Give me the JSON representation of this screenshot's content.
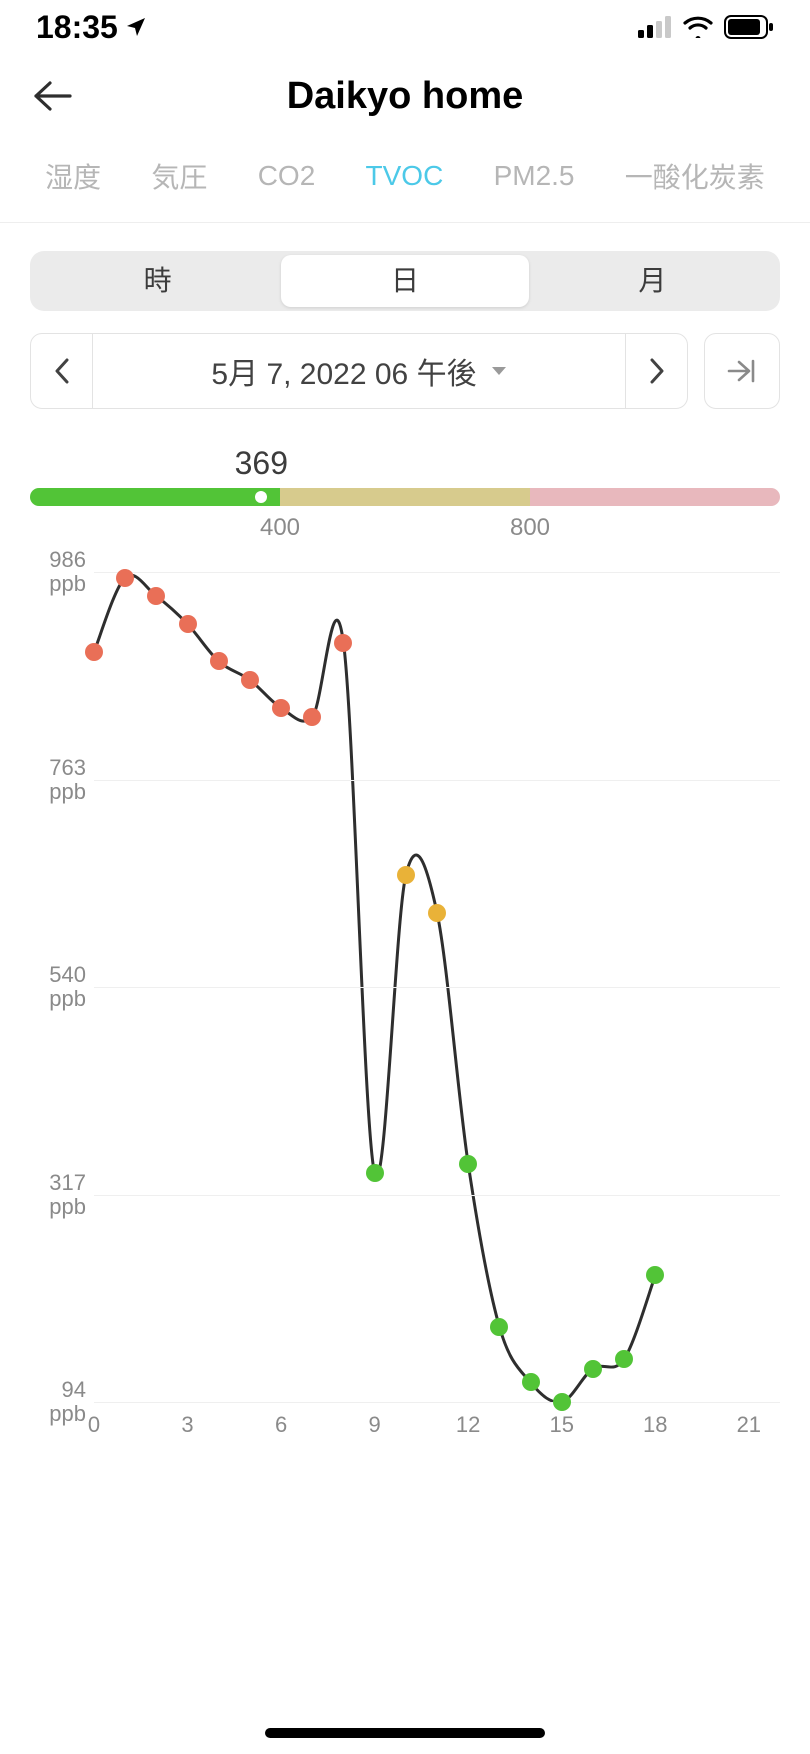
{
  "status": {
    "time": "18:35"
  },
  "header": {
    "title": "Daikyo home"
  },
  "tabs": {
    "items": [
      "湿度",
      "気圧",
      "CO2",
      "TVOC",
      "PM2.5",
      "一酸化炭素"
    ],
    "active_index": 3,
    "active_color": "#4cc9e8",
    "inactive_color": "#b6b6b6"
  },
  "segments": {
    "items": [
      "時",
      "日",
      "月"
    ],
    "selected_index": 1
  },
  "date": {
    "label": "5月 7, 2022 06 午後"
  },
  "gauge": {
    "value_label": "369",
    "value": 369,
    "max": 1200,
    "thresholds": [
      400,
      800
    ],
    "tick_labels": [
      "400",
      "800"
    ],
    "colors": [
      "#52c437",
      "#d7cb8d",
      "#e8b8bd"
    ]
  },
  "chart": {
    "y_min": 94,
    "y_max": 986,
    "y_unit": "ppb",
    "y_ticks": [
      986,
      763,
      540,
      317,
      94
    ],
    "x_min": 0,
    "x_max": 22,
    "x_ticks": [
      0,
      3,
      6,
      9,
      12,
      15,
      18,
      21
    ],
    "line_color": "#2e2e2e",
    "line_width": 3,
    "marker_radius": 9,
    "grid_color": "#efefef",
    "colors": {
      "red": "#e96f57",
      "orange": "#e9b238",
      "green": "#52c437"
    },
    "points": [
      {
        "x": 0,
        "y": 900,
        "c": "red"
      },
      {
        "x": 1,
        "y": 980,
        "c": "red"
      },
      {
        "x": 2,
        "y": 960,
        "c": "red"
      },
      {
        "x": 3,
        "y": 930,
        "c": "red"
      },
      {
        "x": 4,
        "y": 890,
        "c": "red"
      },
      {
        "x": 5,
        "y": 870,
        "c": "red"
      },
      {
        "x": 6,
        "y": 840,
        "c": "red"
      },
      {
        "x": 7,
        "y": 830,
        "c": "red"
      },
      {
        "x": 8,
        "y": 910,
        "c": "red"
      },
      {
        "x": 9,
        "y": 340,
        "c": "green"
      },
      {
        "x": 10,
        "y": 660,
        "c": "orange"
      },
      {
        "x": 11,
        "y": 620,
        "c": "orange"
      },
      {
        "x": 12,
        "y": 350,
        "c": "green"
      },
      {
        "x": 13,
        "y": 175,
        "c": "green"
      },
      {
        "x": 14,
        "y": 115,
        "c": "green"
      },
      {
        "x": 15,
        "y": 94,
        "c": "green"
      },
      {
        "x": 16,
        "y": 130,
        "c": "green"
      },
      {
        "x": 17,
        "y": 140,
        "c": "green"
      },
      {
        "x": 18,
        "y": 230,
        "c": "green"
      }
    ]
  }
}
